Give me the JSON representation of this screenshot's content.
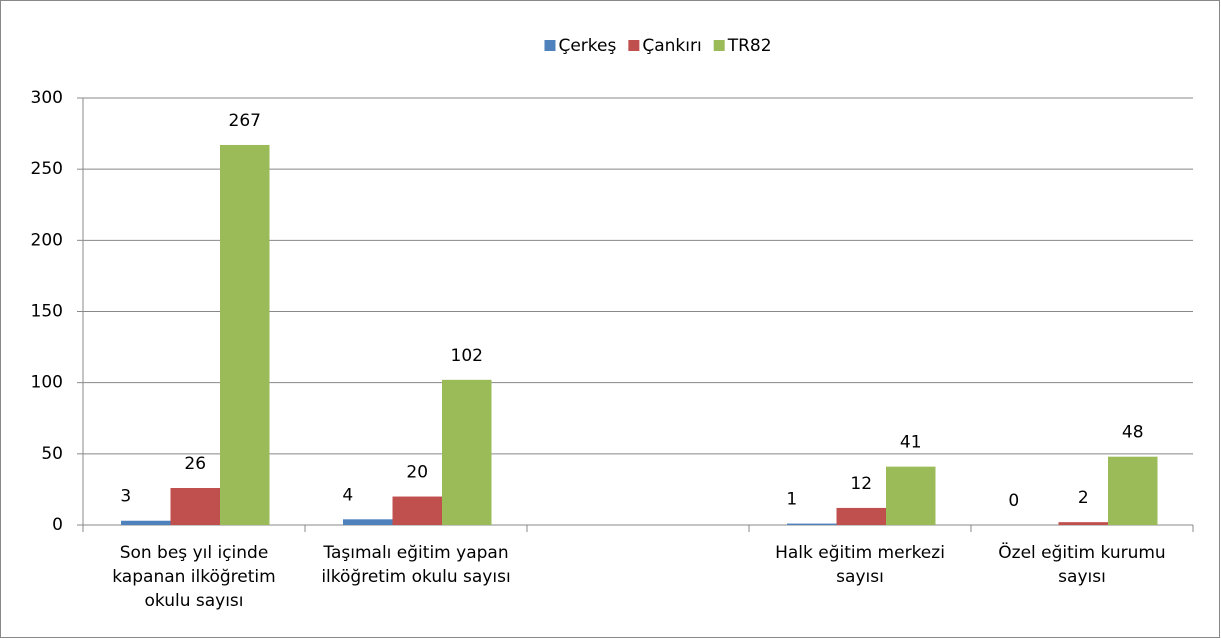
{
  "chart_data": {
    "type": "bar",
    "categories": [
      "Son beş yıl içinde kapanan ilköğretim okulu sayısı",
      "Taşımalı eğitim yapan ilköğretim okulu sayısı",
      null,
      "Halk eğitim merkezi sayısı",
      "Özel eğitim kurumu sayısı"
    ],
    "series": [
      {
        "name": "Çerkeş",
        "color": "#4f81bd",
        "values": [
          3,
          4,
          null,
          1,
          0
        ]
      },
      {
        "name": "Çankırı",
        "color": "#c0504d",
        "values": [
          26,
          20,
          null,
          12,
          2
        ]
      },
      {
        "name": "TR82",
        "color": "#9bbb59",
        "values": [
          267,
          102,
          null,
          41,
          48
        ]
      }
    ],
    "ylim": [
      0,
      300
    ],
    "yticks": [
      0,
      50,
      100,
      150,
      200,
      250,
      300
    ],
    "grid": true,
    "legend": "top"
  }
}
